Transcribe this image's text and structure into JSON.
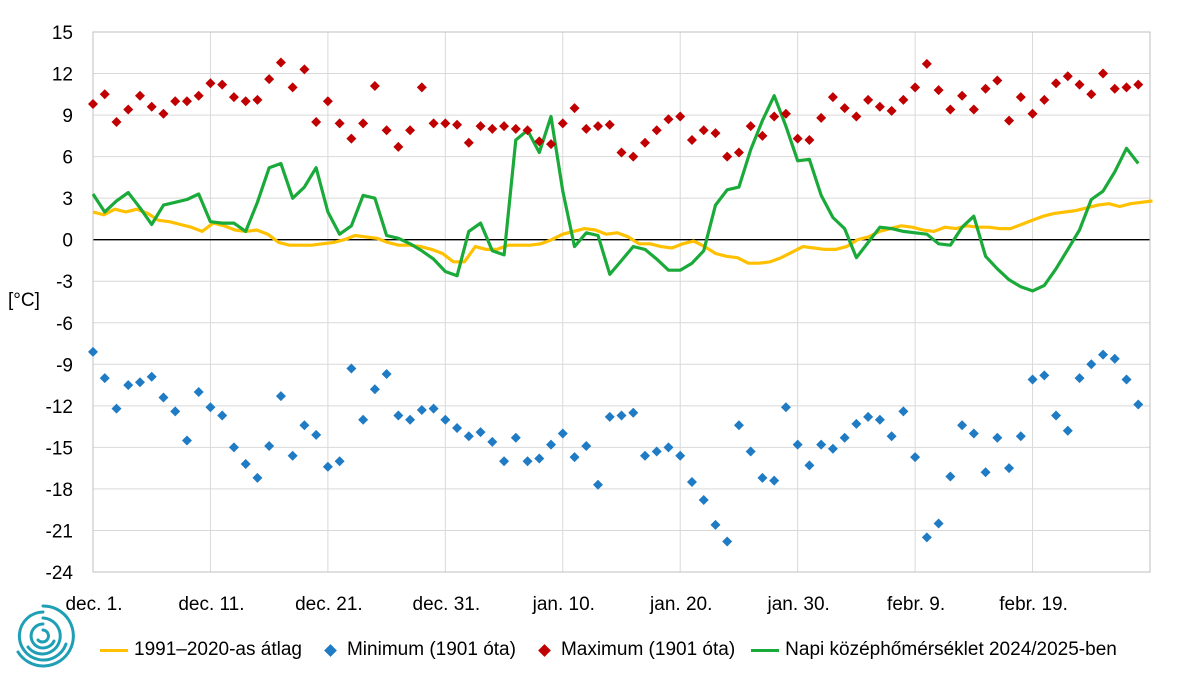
{
  "chart_data": {
    "type": "line",
    "ylabel": "[°C]",
    "ylim": [
      -24,
      15
    ],
    "yticks": [
      15,
      12,
      9,
      6,
      3,
      0,
      -3,
      -6,
      -9,
      -12,
      -15,
      -18,
      -21,
      -24
    ],
    "x_day_range": [
      1,
      91
    ],
    "xticks": [
      {
        "day": 1,
        "label": "dec. 1."
      },
      {
        "day": 11,
        "label": "dec. 11."
      },
      {
        "day": 21,
        "label": "dec. 21."
      },
      {
        "day": 31,
        "label": "dec. 31."
      },
      {
        "day": 41,
        "label": "jan. 10."
      },
      {
        "day": 51,
        "label": "jan. 20."
      },
      {
        "day": 61,
        "label": "jan. 30."
      },
      {
        "day": 71,
        "label": "febr. 9."
      },
      {
        "day": 81,
        "label": "febr. 19."
      }
    ],
    "grid": true,
    "zero_line": true,
    "legend_position": "bottom",
    "series": [
      {
        "name": "1991–2020-as átlag",
        "kind": "line",
        "color": "#ffc000",
        "values": [
          2.0,
          1.8,
          2.2,
          2.0,
          2.2,
          1.9,
          1.4,
          1.3,
          1.1,
          0.9,
          0.6,
          1.2,
          1.0,
          0.7,
          0.6,
          0.7,
          0.4,
          -0.2,
          -0.4,
          -0.4,
          -0.4,
          -0.3,
          -0.2,
          0.0,
          0.3,
          0.2,
          0.1,
          -0.2,
          -0.4,
          -0.4,
          -0.5,
          -0.7,
          -1.0,
          -1.6,
          -1.6,
          -0.5,
          -0.7,
          -0.7,
          -0.4,
          -0.4,
          -0.4,
          -0.3,
          0.0,
          0.4,
          0.6,
          0.8,
          0.7,
          0.4,
          0.5,
          0.2,
          -0.3,
          -0.3,
          -0.5,
          -0.6,
          -0.3,
          -0.1,
          -0.5,
          -1.0,
          -1.2,
          -1.3,
          -1.7,
          -1.7,
          -1.6,
          -1.3,
          -0.9,
          -0.5,
          -0.6,
          -0.7,
          -0.7,
          -0.5,
          0.0,
          0.2,
          0.6,
          0.8,
          1.0,
          0.9,
          0.7,
          0.6,
          0.9,
          0.8,
          1.0,
          0.9,
          0.9,
          0.8,
          0.8,
          1.1,
          1.4,
          1.7,
          1.9,
          2.0,
          2.1,
          2.3,
          2.5,
          2.6,
          2.4,
          2.6,
          2.7,
          2.8
        ],
        "x_start": 1,
        "x_step": 0.93
      },
      {
        "name": "Minimum (1901 óta)",
        "kind": "points",
        "color": "#1f7bc4",
        "points": [
          [
            1,
            -8.1
          ],
          [
            2,
            -10.0
          ],
          [
            3,
            -12.2
          ],
          [
            4,
            -10.5
          ],
          [
            5,
            -10.3
          ],
          [
            6,
            -9.9
          ],
          [
            7,
            -11.4
          ],
          [
            8,
            -12.4
          ],
          [
            9,
            -14.5
          ],
          [
            10,
            -11.0
          ],
          [
            11,
            -12.1
          ],
          [
            12,
            -12.7
          ],
          [
            13,
            -15.0
          ],
          [
            14,
            -16.2
          ],
          [
            15,
            -17.2
          ],
          [
            16,
            -14.9
          ],
          [
            17,
            -11.3
          ],
          [
            18,
            -15.6
          ],
          [
            19,
            -13.4
          ],
          [
            20,
            -14.1
          ],
          [
            21,
            -16.4
          ],
          [
            22,
            -16.0
          ],
          [
            23,
            -9.3
          ],
          [
            24,
            -13.0
          ],
          [
            25,
            -10.8
          ],
          [
            26,
            -9.7
          ],
          [
            27,
            -12.7
          ],
          [
            28,
            -13.0
          ],
          [
            29,
            -12.3
          ],
          [
            30,
            -12.2
          ],
          [
            31,
            -13.0
          ],
          [
            32,
            -13.6
          ],
          [
            33,
            -14.2
          ],
          [
            34,
            -13.9
          ],
          [
            35,
            -14.6
          ],
          [
            36,
            -16.0
          ],
          [
            37,
            -14.3
          ],
          [
            38,
            -16.0
          ],
          [
            39,
            -15.8
          ],
          [
            40,
            -14.8
          ],
          [
            41,
            -14.0
          ],
          [
            42,
            -15.7
          ],
          [
            43,
            -14.9
          ],
          [
            44,
            -17.7
          ],
          [
            45,
            -12.8
          ],
          [
            46,
            -12.7
          ],
          [
            47,
            -12.5
          ],
          [
            48,
            -15.6
          ],
          [
            49,
            -15.3
          ],
          [
            50,
            -15.0
          ],
          [
            51,
            -15.6
          ],
          [
            52,
            -17.5
          ],
          [
            53,
            -18.8
          ],
          [
            54,
            -20.6
          ],
          [
            55,
            -21.8
          ],
          [
            56,
            -13.4
          ],
          [
            57,
            -15.3
          ],
          [
            58,
            -17.2
          ],
          [
            59,
            -17.4
          ],
          [
            60,
            -12.1
          ],
          [
            61,
            -14.8
          ],
          [
            62,
            -16.3
          ],
          [
            63,
            -14.8
          ],
          [
            64,
            -15.1
          ],
          [
            65,
            -14.3
          ],
          [
            66,
            -13.3
          ],
          [
            67,
            -12.8
          ],
          [
            68,
            -13.0
          ],
          [
            69,
            -14.2
          ],
          [
            70,
            -12.4
          ],
          [
            71,
            -15.7
          ],
          [
            72,
            -21.5
          ],
          [
            73,
            -20.5
          ],
          [
            74,
            -17.1
          ],
          [
            75,
            -13.4
          ],
          [
            76,
            -14.0
          ],
          [
            77,
            -16.8
          ],
          [
            78,
            -14.3
          ],
          [
            79,
            -16.5
          ],
          [
            80,
            -14.2
          ],
          [
            81,
            -10.1
          ],
          [
            82,
            -9.8
          ],
          [
            83,
            -12.7
          ],
          [
            84,
            -13.8
          ],
          [
            85,
            -10.0
          ],
          [
            86,
            -9.0
          ],
          [
            87,
            -8.3
          ],
          [
            88,
            -8.6
          ],
          [
            89,
            -10.1
          ],
          [
            90,
            -11.9
          ]
        ]
      },
      {
        "name": "Maximum (1901 óta)",
        "kind": "points",
        "color": "#c00000",
        "points": [
          [
            1,
            9.8
          ],
          [
            2,
            10.5
          ],
          [
            3,
            8.5
          ],
          [
            4,
            9.4
          ],
          [
            5,
            10.4
          ],
          [
            6,
            9.6
          ],
          [
            7,
            9.1
          ],
          [
            8,
            10.0
          ],
          [
            9,
            10.0
          ],
          [
            10,
            10.4
          ],
          [
            11,
            11.3
          ],
          [
            12,
            11.2
          ],
          [
            13,
            10.3
          ],
          [
            14,
            10.0
          ],
          [
            15,
            10.1
          ],
          [
            16,
            11.6
          ],
          [
            17,
            12.8
          ],
          [
            18,
            11.0
          ],
          [
            19,
            12.3
          ],
          [
            20,
            8.5
          ],
          [
            21,
            10.0
          ],
          [
            22,
            8.4
          ],
          [
            23,
            7.3
          ],
          [
            24,
            8.4
          ],
          [
            25,
            11.1
          ],
          [
            26,
            7.9
          ],
          [
            27,
            6.7
          ],
          [
            28,
            7.9
          ],
          [
            29,
            11.0
          ],
          [
            30,
            8.4
          ],
          [
            31,
            8.4
          ],
          [
            32,
            8.3
          ],
          [
            33,
            7.0
          ],
          [
            34,
            8.2
          ],
          [
            35,
            8.0
          ],
          [
            36,
            8.2
          ],
          [
            37,
            8.0
          ],
          [
            38,
            7.9
          ],
          [
            39,
            7.1
          ],
          [
            40,
            6.9
          ],
          [
            41,
            8.4
          ],
          [
            42,
            9.5
          ],
          [
            43,
            8.0
          ],
          [
            44,
            8.2
          ],
          [
            45,
            8.3
          ],
          [
            46,
            6.3
          ],
          [
            47,
            6.0
          ],
          [
            48,
            7.0
          ],
          [
            49,
            7.9
          ],
          [
            50,
            8.7
          ],
          [
            51,
            8.9
          ],
          [
            52,
            7.2
          ],
          [
            53,
            7.9
          ],
          [
            54,
            7.7
          ],
          [
            55,
            6.0
          ],
          [
            56,
            6.3
          ],
          [
            57,
            8.2
          ],
          [
            58,
            7.5
          ],
          [
            59,
            8.9
          ],
          [
            60,
            9.1
          ],
          [
            61,
            7.3
          ],
          [
            62,
            7.2
          ],
          [
            63,
            8.8
          ],
          [
            64,
            10.3
          ],
          [
            65,
            9.5
          ],
          [
            66,
            8.9
          ],
          [
            67,
            10.1
          ],
          [
            68,
            9.6
          ],
          [
            69,
            9.3
          ],
          [
            70,
            10.1
          ],
          [
            71,
            11.0
          ],
          [
            72,
            12.7
          ],
          [
            73,
            10.8
          ],
          [
            74,
            9.4
          ],
          [
            75,
            10.4
          ],
          [
            76,
            9.4
          ],
          [
            77,
            10.9
          ],
          [
            78,
            11.5
          ],
          [
            79,
            8.6
          ],
          [
            80,
            10.3
          ],
          [
            81,
            9.1
          ],
          [
            82,
            10.1
          ],
          [
            83,
            11.3
          ],
          [
            84,
            11.8
          ],
          [
            85,
            11.2
          ],
          [
            86,
            10.5
          ],
          [
            87,
            12.0
          ],
          [
            88,
            10.9
          ],
          [
            89,
            11.0
          ],
          [
            90,
            11.2
          ]
        ]
      },
      {
        "name": "Napi középhőmérséklet 2024/2025-ben",
        "kind": "line",
        "color": "#1aaa3a",
        "points": [
          [
            1,
            3.3
          ],
          [
            2,
            2.0
          ],
          [
            3,
            2.8
          ],
          [
            4,
            3.4
          ],
          [
            5,
            2.3
          ],
          [
            6,
            1.1
          ],
          [
            7,
            2.5
          ],
          [
            8,
            2.7
          ],
          [
            9,
            2.9
          ],
          [
            10,
            3.3
          ],
          [
            11,
            1.3
          ],
          [
            12,
            1.2
          ],
          [
            13,
            1.2
          ],
          [
            14,
            0.6
          ],
          [
            15,
            2.7
          ],
          [
            16,
            5.2
          ],
          [
            17,
            5.5
          ],
          [
            18,
            3.0
          ],
          [
            19,
            3.8
          ],
          [
            20,
            5.2
          ],
          [
            21,
            2.0
          ],
          [
            22,
            0.4
          ],
          [
            23,
            1.0
          ],
          [
            24,
            3.2
          ],
          [
            25,
            3.0
          ],
          [
            26,
            0.3
          ],
          [
            27,
            0.1
          ],
          [
            28,
            -0.3
          ],
          [
            29,
            -0.8
          ],
          [
            30,
            -1.4
          ],
          [
            31,
            -2.3
          ],
          [
            32,
            -2.6
          ],
          [
            33,
            0.6
          ],
          [
            34,
            1.2
          ],
          [
            35,
            -0.8
          ],
          [
            36,
            -1.1
          ],
          [
            37,
            7.2
          ],
          [
            38,
            7.9
          ],
          [
            39,
            6.3
          ],
          [
            40,
            8.9
          ],
          [
            41,
            3.5
          ],
          [
            42,
            -0.5
          ],
          [
            43,
            0.5
          ],
          [
            44,
            0.3
          ],
          [
            45,
            -2.5
          ],
          [
            46,
            -1.5
          ],
          [
            47,
            -0.5
          ],
          [
            48,
            -0.7
          ],
          [
            49,
            -1.4
          ],
          [
            50,
            -2.2
          ],
          [
            51,
            -2.2
          ],
          [
            52,
            -1.7
          ],
          [
            53,
            -0.8
          ],
          [
            54,
            2.5
          ],
          [
            55,
            3.6
          ],
          [
            56,
            3.8
          ],
          [
            57,
            6.5
          ],
          [
            58,
            8.6
          ],
          [
            59,
            10.4
          ],
          [
            60,
            8.2
          ],
          [
            61,
            5.7
          ],
          [
            62,
            5.8
          ],
          [
            63,
            3.2
          ],
          [
            64,
            1.6
          ],
          [
            65,
            0.8
          ],
          [
            66,
            -1.3
          ],
          [
            67,
            -0.2
          ],
          [
            68,
            0.9
          ],
          [
            69,
            0.8
          ],
          [
            70,
            0.6
          ],
          [
            71,
            0.5
          ],
          [
            72,
            0.4
          ],
          [
            73,
            -0.3
          ],
          [
            74,
            -0.4
          ],
          [
            75,
            0.9
          ],
          [
            76,
            1.7
          ],
          [
            77,
            -1.2
          ],
          [
            78,
            -2.1
          ],
          [
            79,
            -2.9
          ],
          [
            80,
            -3.4
          ],
          [
            81,
            -3.7
          ],
          [
            82,
            -3.3
          ],
          [
            83,
            -2.1
          ],
          [
            84,
            -0.7
          ],
          [
            85,
            0.7
          ],
          [
            86,
            2.9
          ],
          [
            87,
            3.5
          ],
          [
            88,
            4.9
          ],
          [
            89,
            6.6
          ],
          [
            90,
            5.5
          ]
        ]
      }
    ]
  }
}
